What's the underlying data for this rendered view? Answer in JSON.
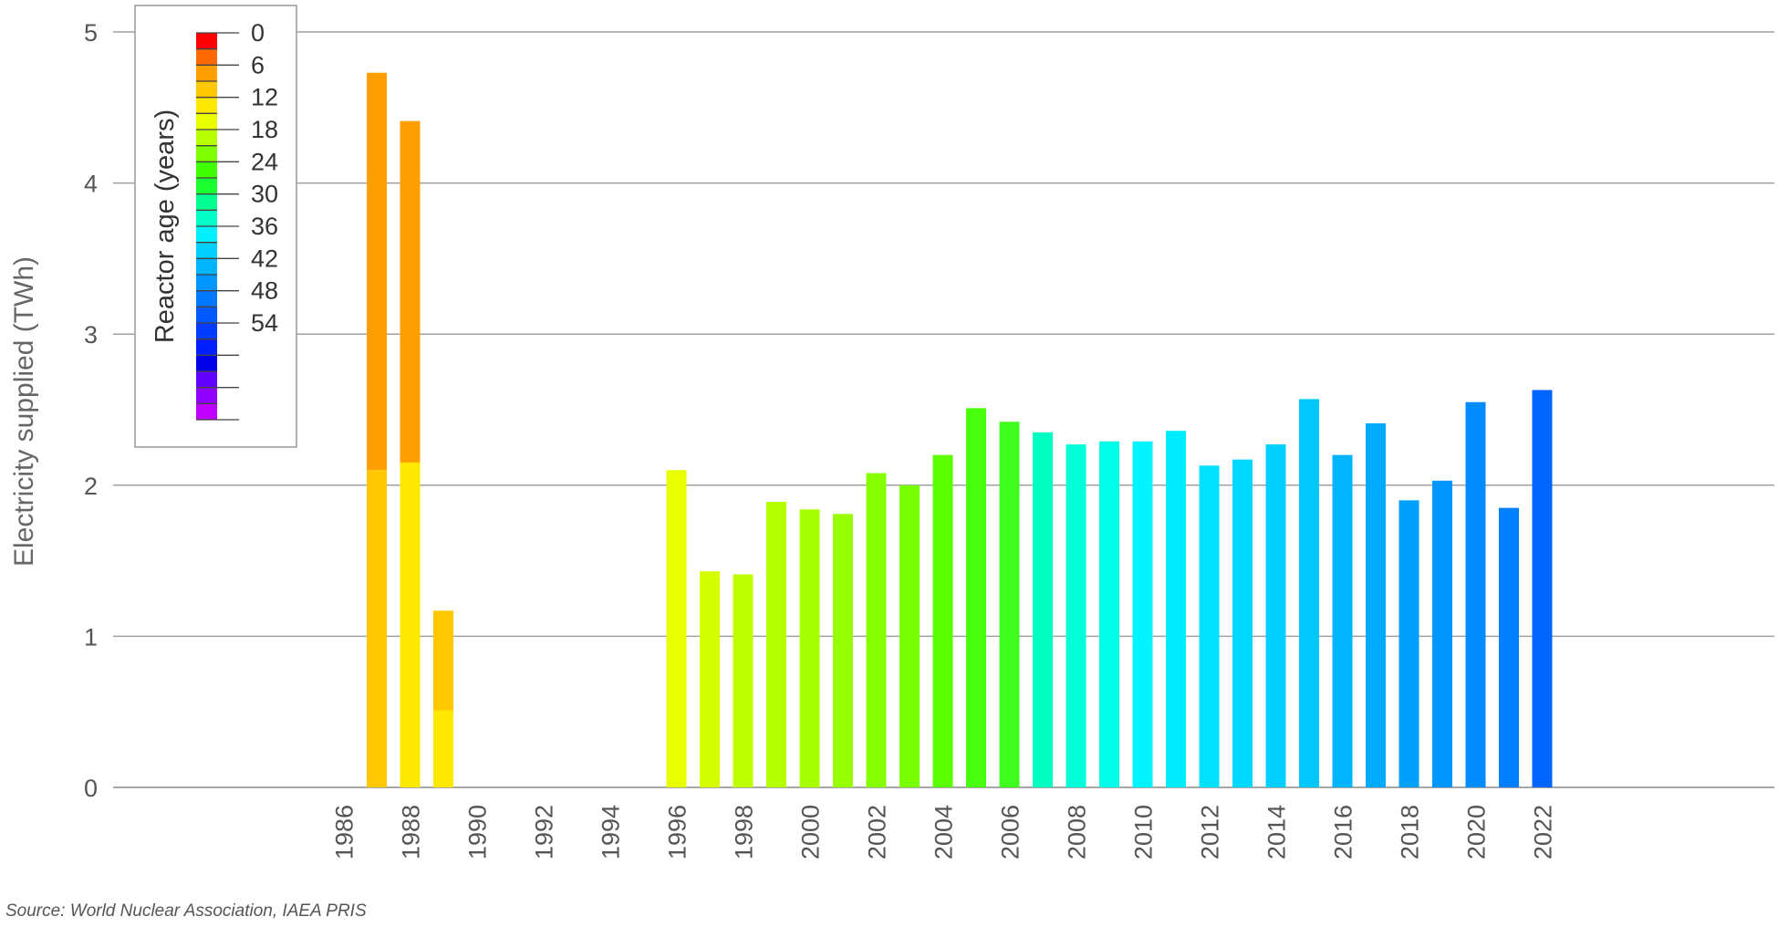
{
  "chart_data": {
    "type": "bar",
    "stacked": true,
    "ylabel": "Electricity supplied (TWh)",
    "xlabel": "",
    "title": "",
    "ylim": [
      0,
      5
    ],
    "xlim": [
      1984,
      2029
    ],
    "y_ticks": [
      0,
      1,
      2,
      3,
      4,
      5
    ],
    "x_ticks": [
      1986,
      1988,
      1990,
      1992,
      1994,
      1996,
      1998,
      2000,
      2002,
      2004,
      2006,
      2008,
      2010,
      2012,
      2014,
      2016,
      2018,
      2020,
      2022
    ],
    "grid": "horizontal",
    "legend": {
      "title": "Reactor age (years)",
      "position": "top-left",
      "ticks": [
        "0",
        "6",
        "12",
        "18",
        "24",
        "30",
        "36",
        "42",
        "48",
        "54"
      ],
      "colors": [
        "#ff0000",
        "#ff6a00",
        "#ff9f00",
        "#ffc800",
        "#ffe800",
        "#e9ff00",
        "#b8ff00",
        "#80ff00",
        "#40ff00",
        "#1aff30",
        "#00ff90",
        "#00ffc8",
        "#00f0ff",
        "#00d0ff",
        "#00b4ff",
        "#0096ff",
        "#0078ff",
        "#005aff",
        "#003cff",
        "#001eff",
        "#0000e8",
        "#6000ff",
        "#9000ff",
        "#c000ff"
      ]
    },
    "bars": [
      {
        "year": 1987,
        "segments": [
          {
            "value": 2.1,
            "color": "#ffc800"
          },
          {
            "value": 2.63,
            "color": "#ff9f00"
          }
        ]
      },
      {
        "year": 1988,
        "segments": [
          {
            "value": 2.15,
            "color": "#ffe800"
          },
          {
            "value": 2.26,
            "color": "#ff9f00"
          }
        ]
      },
      {
        "year": 1989,
        "segments": [
          {
            "value": 0.51,
            "color": "#ffe800"
          },
          {
            "value": 0.66,
            "color": "#ffc800"
          }
        ]
      },
      {
        "year": 1996,
        "segments": [
          {
            "value": 2.1,
            "color": "#e9ff00"
          }
        ]
      },
      {
        "year": 1997,
        "segments": [
          {
            "value": 1.43,
            "color": "#d4ff00"
          }
        ]
      },
      {
        "year": 1998,
        "segments": [
          {
            "value": 1.41,
            "color": "#c0ff00"
          }
        ]
      },
      {
        "year": 1999,
        "segments": [
          {
            "value": 1.89,
            "color": "#b4ff00"
          }
        ]
      },
      {
        "year": 2000,
        "segments": [
          {
            "value": 1.84,
            "color": "#a8ff00"
          }
        ]
      },
      {
        "year": 2001,
        "segments": [
          {
            "value": 1.81,
            "color": "#98ff00"
          }
        ]
      },
      {
        "year": 2002,
        "segments": [
          {
            "value": 2.08,
            "color": "#88ff00"
          }
        ]
      },
      {
        "year": 2003,
        "segments": [
          {
            "value": 2.0,
            "color": "#78ff00"
          }
        ]
      },
      {
        "year": 2004,
        "segments": [
          {
            "value": 2.2,
            "color": "#5cff00"
          }
        ]
      },
      {
        "year": 2005,
        "segments": [
          {
            "value": 2.51,
            "color": "#48ff10"
          }
        ]
      },
      {
        "year": 2006,
        "segments": [
          {
            "value": 2.42,
            "color": "#40ff20"
          }
        ]
      },
      {
        "year": 2007,
        "segments": [
          {
            "value": 2.35,
            "color": "#00ffc0"
          }
        ]
      },
      {
        "year": 2008,
        "segments": [
          {
            "value": 2.27,
            "color": "#00ffd8"
          }
        ]
      },
      {
        "year": 2009,
        "segments": [
          {
            "value": 2.29,
            "color": "#00ffe8"
          }
        ]
      },
      {
        "year": 2010,
        "segments": [
          {
            "value": 2.29,
            "color": "#00f4ff"
          }
        ]
      },
      {
        "year": 2011,
        "segments": [
          {
            "value": 2.36,
            "color": "#00ecff"
          }
        ]
      },
      {
        "year": 2012,
        "segments": [
          {
            "value": 2.13,
            "color": "#00e0ff"
          }
        ]
      },
      {
        "year": 2013,
        "segments": [
          {
            "value": 2.17,
            "color": "#00d8ff"
          }
        ]
      },
      {
        "year": 2014,
        "segments": [
          {
            "value": 2.27,
            "color": "#00d0ff"
          }
        ]
      },
      {
        "year": 2015,
        "segments": [
          {
            "value": 2.57,
            "color": "#00c8ff"
          }
        ]
      },
      {
        "year": 2016,
        "segments": [
          {
            "value": 2.2,
            "color": "#00b4ff"
          }
        ]
      },
      {
        "year": 2017,
        "segments": [
          {
            "value": 2.41,
            "color": "#00aaff"
          }
        ]
      },
      {
        "year": 2018,
        "segments": [
          {
            "value": 1.9,
            "color": "#00a0ff"
          }
        ]
      },
      {
        "year": 2019,
        "segments": [
          {
            "value": 2.03,
            "color": "#0096ff"
          }
        ]
      },
      {
        "year": 2020,
        "segments": [
          {
            "value": 2.55,
            "color": "#008cff"
          }
        ]
      },
      {
        "year": 2021,
        "segments": [
          {
            "value": 1.85,
            "color": "#0080ff"
          }
        ]
      },
      {
        "year": 2022,
        "segments": [
          {
            "value": 2.63,
            "color": "#0064ff"
          }
        ]
      }
    ]
  },
  "source": "Source: World Nuclear Association, IAEA PRIS"
}
